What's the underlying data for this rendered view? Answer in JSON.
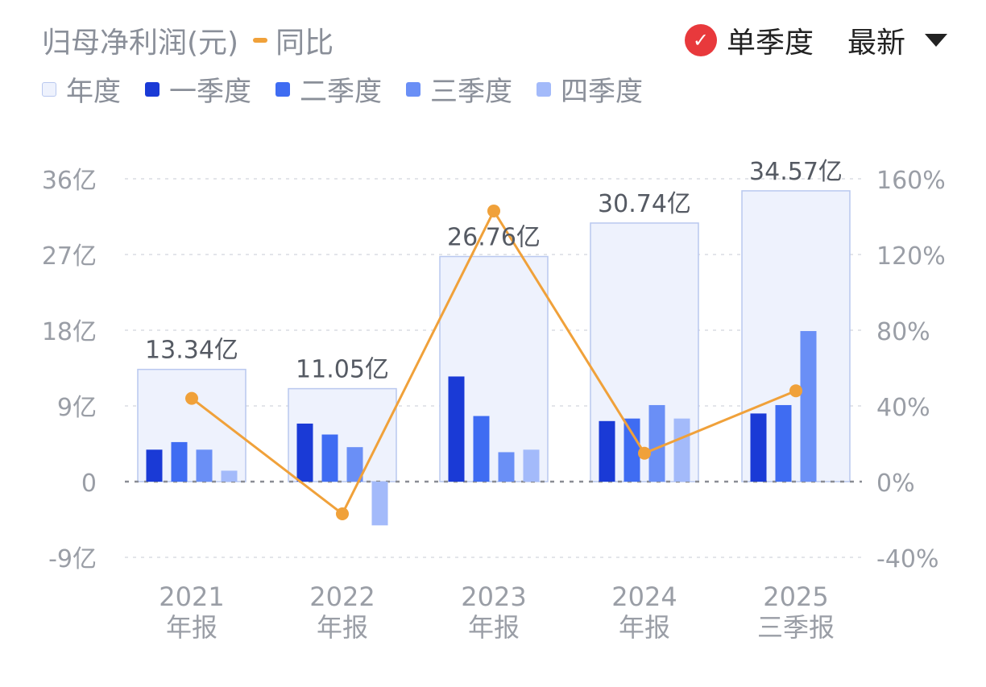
{
  "header": {
    "title": "归母净利润(元)",
    "yoy_label": "同比",
    "single_quarter_label": "单季度",
    "latest_label": "最新"
  },
  "legend": [
    {
      "name": "年度",
      "color": "#eef2fd",
      "border": "#b9c8ef"
    },
    {
      "name": "一季度",
      "color": "#1a3ad6"
    },
    {
      "name": "二季度",
      "color": "#3f6cf2"
    },
    {
      "name": "三季度",
      "color": "#6a8ff6"
    },
    {
      "name": "四季度",
      "color": "#a3bafa"
    }
  ],
  "chart_data": {
    "type": "bar",
    "categories": [
      {
        "year": "2021",
        "period": "年报"
      },
      {
        "year": "2022",
        "period": "年报"
      },
      {
        "year": "2023",
        "period": "年报"
      },
      {
        "year": "2024",
        "period": "年报"
      },
      {
        "year": "2025",
        "period": "三季报"
      }
    ],
    "annual": {
      "values": [
        13.34,
        11.05,
        26.76,
        30.74,
        34.57
      ],
      "labels": [
        "13.34亿",
        "11.05亿",
        "26.76亿",
        "30.74亿",
        "34.57亿"
      ]
    },
    "series": [
      {
        "name": "一季度",
        "values": [
          3.8,
          6.9,
          12.5,
          7.2,
          8.1
        ]
      },
      {
        "name": "二季度",
        "values": [
          4.7,
          5.6,
          7.8,
          7.5,
          9.1
        ]
      },
      {
        "name": "三季度",
        "values": [
          3.8,
          4.1,
          3.5,
          9.1,
          17.9
        ]
      },
      {
        "name": "四季度",
        "values": [
          1.3,
          -5.2,
          3.8,
          7.5,
          null
        ]
      }
    ],
    "yoy": {
      "name": "同比",
      "values": [
        44,
        -17,
        143,
        15,
        48
      ]
    },
    "y_left": {
      "ticks": [
        -9,
        0,
        9,
        18,
        27,
        36
      ],
      "tick_labels": [
        "-9亿",
        "0",
        "9亿",
        "18亿",
        "27亿",
        "36亿"
      ],
      "range": [
        -9,
        36
      ]
    },
    "y_right": {
      "ticks": [
        -40,
        0,
        40,
        80,
        120,
        160
      ],
      "tick_labels": [
        "-40%",
        "0%",
        "40%",
        "80%",
        "120%",
        "160%"
      ],
      "range": [
        -40,
        160
      ]
    },
    "grid": true
  },
  "colors": {
    "q1": "#1a3ad6",
    "q2": "#3f6cf2",
    "q3": "#6a8ff6",
    "q4": "#a3bafa",
    "annual_fill": "#eef2fd",
    "annual_stroke": "#b9c8ef",
    "yoy_line": "#f0a13a",
    "check": "#e8393c"
  }
}
